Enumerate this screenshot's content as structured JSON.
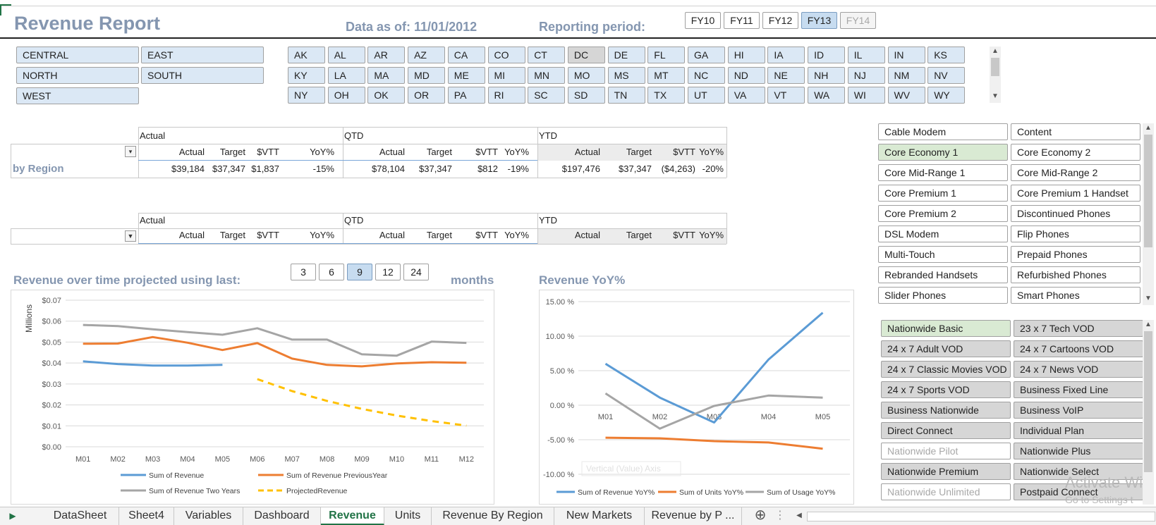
{
  "header": {
    "title": "Revenue Report",
    "as_of": "Data as of: 11/01/2012",
    "period_label": "Reporting period:",
    "fiscal_years": [
      {
        "label": "FY10",
        "state": "normal"
      },
      {
        "label": "FY11",
        "state": "normal"
      },
      {
        "label": "FY12",
        "state": "normal"
      },
      {
        "label": "FY13",
        "state": "selected"
      },
      {
        "label": "FY14",
        "state": "disabled"
      }
    ]
  },
  "regions": [
    "CENTRAL",
    "EAST",
    "NORTH",
    "SOUTH",
    "WEST"
  ],
  "states": [
    [
      "AK",
      "AL",
      "AR",
      "AZ",
      "CA",
      "CO",
      "CT",
      "DC",
      "DE",
      "FL",
      "GA",
      "HI",
      "IA",
      "ID",
      "IL",
      "IN",
      "KS"
    ],
    [
      "KY",
      "LA",
      "MA",
      "MD",
      "ME",
      "MI",
      "MN",
      "MO",
      "MS",
      "MT",
      "NC",
      "ND",
      "NE",
      "NH",
      "NJ",
      "NM",
      "NV"
    ],
    [
      "NY",
      "OH",
      "OK",
      "OR",
      "PA",
      "RI",
      "SC",
      "SD",
      "TN",
      "TX",
      "UT",
      "VA",
      "VT",
      "WA",
      "WI",
      "WV",
      "WY"
    ]
  ],
  "state_unselected": "DC",
  "pivot1": {
    "groups": [
      "Actual",
      "QTD",
      "YTD"
    ],
    "columns": [
      "Actual",
      "Target",
      "$VTT",
      "YoY%",
      "Actual",
      "Target",
      "$VTT",
      "YoY%",
      "Actual",
      "Target",
      "$VTT",
      "YoY%"
    ],
    "row_label": "by Region",
    "values": [
      "$39,184",
      "$37,347",
      "$1,837",
      "-15%",
      "$78,104",
      "$37,347",
      "$812",
      "-19%",
      "$197,476",
      "$37,347",
      "($4,263)",
      "-20%"
    ]
  },
  "pivot2": {
    "groups": [
      "Actual",
      "QTD",
      "YTD"
    ],
    "columns": [
      "Actual",
      "Target",
      "$VTT",
      "YoY%",
      "Actual",
      "Target",
      "$VTT",
      "YoY%",
      "Actual",
      "Target",
      "$VTT",
      "YoY%"
    ]
  },
  "projection": {
    "label": "Revenue over time projected using last:",
    "options": [
      {
        "label": "3"
      },
      {
        "label": "6"
      },
      {
        "label": "9",
        "selected": true
      },
      {
        "label": "12"
      },
      {
        "label": "24"
      }
    ],
    "suffix": "months"
  },
  "yoy_title": "Revenue YoY%",
  "products": [
    {
      "label": "Cable Modem",
      "state": "white"
    },
    {
      "label": "Content",
      "state": "white"
    },
    {
      "label": "Core Economy 1",
      "state": "green"
    },
    {
      "label": "Core Economy 2",
      "state": "white"
    },
    {
      "label": "Core Mid-Range 1",
      "state": "white"
    },
    {
      "label": "Core Mid-Range 2",
      "state": "white"
    },
    {
      "label": "Core Premium 1",
      "state": "white"
    },
    {
      "label": "Core Premium 1 Handset",
      "state": "white"
    },
    {
      "label": "Core Premium 2",
      "state": "white"
    },
    {
      "label": "Discontinued Phones",
      "state": "white"
    },
    {
      "label": "DSL Modem",
      "state": "white"
    },
    {
      "label": "Flip Phones",
      "state": "white"
    },
    {
      "label": "Multi-Touch",
      "state": "white"
    },
    {
      "label": "Prepaid Phones",
      "state": "white"
    },
    {
      "label": "Rebranded Handsets",
      "state": "white"
    },
    {
      "label": "Refurbished Phones",
      "state": "white"
    },
    {
      "label": "Slider Phones",
      "state": "white"
    },
    {
      "label": "Smart Phones",
      "state": "white"
    }
  ],
  "plans": [
    {
      "label": "Nationwide Basic",
      "state": "green"
    },
    {
      "label": "23 x 7 Tech VOD",
      "state": "gray"
    },
    {
      "label": "24 x 7 Adult VOD",
      "state": "gray"
    },
    {
      "label": "24 x 7 Cartoons VOD",
      "state": "gray"
    },
    {
      "label": "24 x 7 Classic Movies VOD",
      "state": "gray"
    },
    {
      "label": "24 x 7 News VOD",
      "state": "gray"
    },
    {
      "label": "24 x 7 Sports VOD",
      "state": "gray"
    },
    {
      "label": "Business Fixed Line",
      "state": "gray"
    },
    {
      "label": "Business Nationwide",
      "state": "gray"
    },
    {
      "label": "Business VoIP",
      "state": "gray"
    },
    {
      "label": "Direct Connect",
      "state": "gray"
    },
    {
      "label": "Individual Plan",
      "state": "gray"
    },
    {
      "label": "Nationwide Pilot",
      "state": "dim"
    },
    {
      "label": "Nationwide Plus",
      "state": "gray"
    },
    {
      "label": "Nationwide Premium",
      "state": "gray"
    },
    {
      "label": "Nationwide Select",
      "state": "gray"
    },
    {
      "label": "Nationwide Unlimited",
      "state": "dim"
    },
    {
      "label": "Postpaid Connect",
      "state": "gray"
    }
  ],
  "chart_data": [
    {
      "type": "line",
      "ylabel": "Millions",
      "ylim": [
        0,
        0.07
      ],
      "y_ticks": [
        "$0.00",
        "$0.01",
        "$0.02",
        "$0.03",
        "$0.04",
        "$0.05",
        "$0.06",
        "$0.07"
      ],
      "categories": [
        "M01",
        "M02",
        "M03",
        "M04",
        "M05",
        "M06",
        "M07",
        "M08",
        "M09",
        "M10",
        "M11",
        "M12"
      ],
      "grid": true,
      "legend_position": "bottom",
      "series": [
        {
          "name": "Sum of Revenue",
          "color": "#5b9bd5",
          "style": "solid",
          "values": [
            0.0408,
            0.0395,
            0.0388,
            0.0388,
            0.0391,
            null,
            null,
            null,
            null,
            null,
            null,
            null
          ]
        },
        {
          "name": "Sum of Revenue PreviousYear",
          "color": "#ed7d31",
          "style": "solid",
          "values": [
            0.0492,
            0.0493,
            0.0524,
            0.0497,
            0.0462,
            0.0495,
            0.0421,
            0.0391,
            0.0384,
            0.0398,
            0.0404,
            0.0401
          ]
        },
        {
          "name": "Sum of Revenue Two Years",
          "color": "#a5a5a5",
          "style": "solid",
          "values": [
            0.0582,
            0.0576,
            0.0561,
            0.0548,
            0.0535,
            0.0566,
            0.0512,
            0.0512,
            0.0442,
            0.0435,
            0.0502,
            0.0496
          ]
        },
        {
          "name": "ProjectedRevenue",
          "color": "#ffc000",
          "style": "dashed",
          "values": [
            null,
            null,
            null,
            null,
            null,
            0.0323,
            0.0266,
            0.0219,
            0.0181,
            0.0149,
            0.0123,
            0.0101
          ]
        }
      ]
    },
    {
      "type": "line",
      "ylim": [
        -10,
        15
      ],
      "y_ticks": [
        "-10.00 %",
        "-5.00 %",
        "0.00 %",
        "5.00 %",
        "10.00 %",
        "15.00 %"
      ],
      "categories": [
        "M01",
        "M02",
        "M03",
        "M04",
        "M05"
      ],
      "grid": true,
      "legend_position": "bottom",
      "axis_title_placeholder": "Vertical (Value) Axis",
      "series": [
        {
          "name": "Sum of Revenue YoY%",
          "color": "#5b9bd5",
          "values": [
            6.0,
            1.1,
            -2.5,
            6.6,
            13.4
          ]
        },
        {
          "name": "Sum of Units YoY%",
          "color": "#ed7d31",
          "values": [
            -4.7,
            -4.8,
            -5.2,
            -5.4,
            -6.3
          ]
        },
        {
          "name": "Sum of Usage YoY%",
          "color": "#a5a5a5",
          "values": [
            1.7,
            -3.4,
            -0.1,
            1.4,
            1.1
          ]
        }
      ]
    }
  ],
  "sheet_tabs": [
    {
      "label": "DataSheet"
    },
    {
      "label": "Sheet4"
    },
    {
      "label": "Variables"
    },
    {
      "label": "Dashboard"
    },
    {
      "label": "Revenue",
      "active": true
    },
    {
      "label": "Units"
    },
    {
      "label": "Revenue By Region"
    },
    {
      "label": "New Markets"
    },
    {
      "label": "Revenue by P ..."
    }
  ],
  "watermark": {
    "line1": "Activate Wi",
    "line2": "Go to Settings t"
  },
  "icons": {
    "add_sheet": "plus-circle-icon",
    "nav_next": "triangle-right-icon",
    "filter": "filter-icon"
  }
}
